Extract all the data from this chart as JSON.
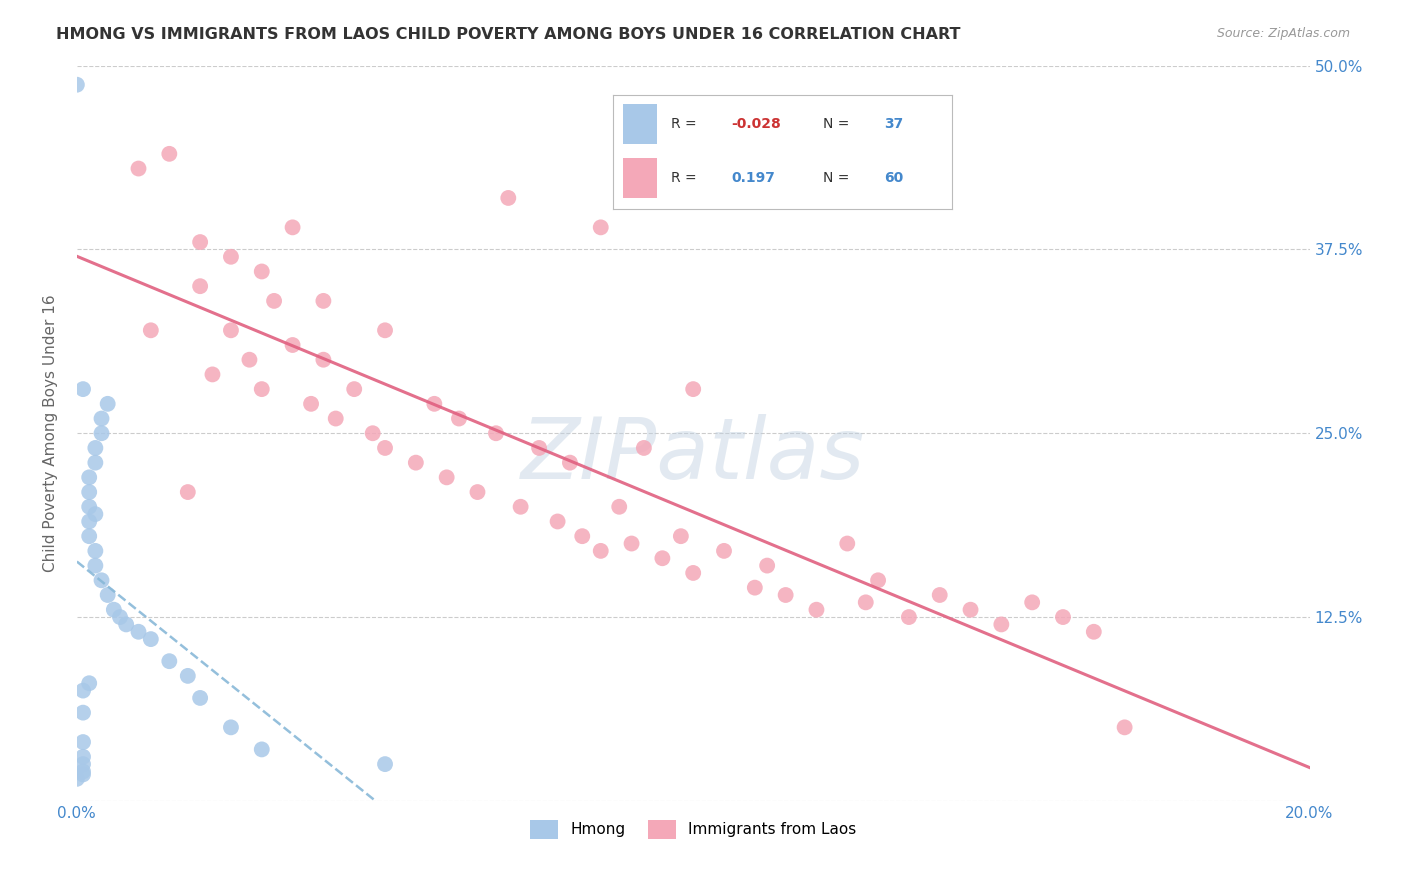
{
  "title": "HMONG VS IMMIGRANTS FROM LAOS CHILD POVERTY AMONG BOYS UNDER 16 CORRELATION CHART",
  "source": "Source: ZipAtlas.com",
  "ylabel": "Child Poverty Among Boys Under 16",
  "x_min": 0.0,
  "x_max": 0.2,
  "y_min": 0.0,
  "y_max": 0.5,
  "x_ticks": [
    0.0,
    0.04,
    0.08,
    0.12,
    0.16,
    0.2
  ],
  "y_ticks": [
    0.0,
    0.125,
    0.25,
    0.375,
    0.5
  ],
  "y_right_labels": [
    "",
    "12.5%",
    "25.0%",
    "37.5%",
    "50.0%"
  ],
  "hmong_R": -0.028,
  "hmong_N": 37,
  "laos_R": 0.197,
  "laos_N": 60,
  "hmong_color": "#a8c8e8",
  "laos_color": "#f4a8b8",
  "trend_hmong_color": "#88b8d8",
  "trend_laos_color": "#e06080",
  "watermark": "ZIPatlas",
  "legend_label_hmong": "Hmong",
  "legend_label_laos": "Immigrants from Laos",
  "grid_color": "#cccccc",
  "tick_color": "#4488cc",
  "title_color": "#333333",
  "source_color": "#999999",
  "ylabel_color": "#666666",
  "hmong_x": [
    0.0,
    0.0,
    0.001,
    0.001,
    0.001,
    0.001,
    0.001,
    0.001,
    0.001,
    0.002,
    0.002,
    0.002,
    0.002,
    0.002,
    0.002,
    0.003,
    0.003,
    0.003,
    0.003,
    0.003,
    0.004,
    0.004,
    0.004,
    0.005,
    0.005,
    0.006,
    0.007,
    0.008,
    0.01,
    0.012,
    0.015,
    0.018,
    0.02,
    0.025,
    0.03,
    0.05,
    0.001
  ],
  "hmong_y": [
    0.487,
    0.015,
    0.018,
    0.02,
    0.025,
    0.03,
    0.04,
    0.06,
    0.075,
    0.08,
    0.18,
    0.19,
    0.2,
    0.21,
    0.22,
    0.16,
    0.17,
    0.195,
    0.23,
    0.24,
    0.15,
    0.25,
    0.26,
    0.14,
    0.27,
    0.13,
    0.125,
    0.12,
    0.115,
    0.11,
    0.095,
    0.085,
    0.07,
    0.05,
    0.035,
    0.025,
    0.28
  ],
  "laos_x": [
    0.01,
    0.012,
    0.015,
    0.018,
    0.02,
    0.02,
    0.022,
    0.025,
    0.025,
    0.028,
    0.03,
    0.03,
    0.032,
    0.035,
    0.035,
    0.038,
    0.04,
    0.04,
    0.042,
    0.045,
    0.048,
    0.05,
    0.05,
    0.055,
    0.058,
    0.06,
    0.062,
    0.065,
    0.068,
    0.07,
    0.072,
    0.075,
    0.078,
    0.08,
    0.082,
    0.085,
    0.085,
    0.088,
    0.09,
    0.092,
    0.095,
    0.098,
    0.1,
    0.1,
    0.105,
    0.11,
    0.112,
    0.115,
    0.12,
    0.125,
    0.128,
    0.13,
    0.135,
    0.14,
    0.145,
    0.15,
    0.155,
    0.16,
    0.165,
    0.17
  ],
  "laos_y": [
    0.43,
    0.32,
    0.44,
    0.21,
    0.38,
    0.35,
    0.29,
    0.37,
    0.32,
    0.3,
    0.28,
    0.36,
    0.34,
    0.31,
    0.39,
    0.27,
    0.3,
    0.34,
    0.26,
    0.28,
    0.25,
    0.24,
    0.32,
    0.23,
    0.27,
    0.22,
    0.26,
    0.21,
    0.25,
    0.41,
    0.2,
    0.24,
    0.19,
    0.23,
    0.18,
    0.17,
    0.39,
    0.2,
    0.175,
    0.24,
    0.165,
    0.18,
    0.155,
    0.28,
    0.17,
    0.145,
    0.16,
    0.14,
    0.13,
    0.175,
    0.135,
    0.15,
    0.125,
    0.14,
    0.13,
    0.12,
    0.135,
    0.125,
    0.115,
    0.05
  ]
}
